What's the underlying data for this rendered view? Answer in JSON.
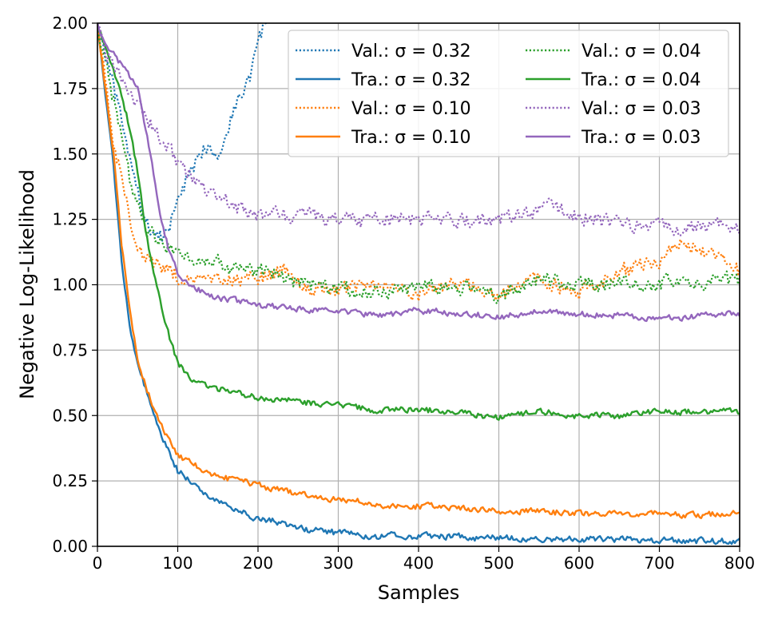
{
  "chart_data": {
    "type": "line",
    "title": "",
    "xlabel": "Samples",
    "ylabel": "Negative Log-Likelihood",
    "xlim": [
      0,
      800
    ],
    "ylim": [
      0.0,
      2.0
    ],
    "grid": true,
    "legend_position": "top-right",
    "legend_columns": 2,
    "x_ticks": [
      0,
      100,
      200,
      300,
      400,
      500,
      600,
      700,
      800
    ],
    "x_tick_labels": [
      "0",
      "100",
      "200",
      "300",
      "400",
      "500",
      "600",
      "700",
      "800"
    ],
    "y_ticks": [
      0.0,
      0.25,
      0.5,
      0.75,
      1.0,
      1.25,
      1.5,
      1.75,
      2.0
    ],
    "y_tick_labels": [
      "0.00",
      "0.25",
      "0.50",
      "0.75",
      "1.00",
      "1.25",
      "1.50",
      "1.75",
      "2.00"
    ],
    "series": [
      {
        "name": "Val.: σ = 0.32",
        "color": "#1f77b4",
        "style": "dotted",
        "x": [
          0,
          10,
          20,
          30,
          40,
          50,
          60,
          70,
          80,
          90,
          100,
          110,
          120,
          130,
          140,
          150,
          160,
          170,
          180,
          190,
          200,
          210
        ],
        "y": [
          2.0,
          1.88,
          1.75,
          1.62,
          1.48,
          1.35,
          1.24,
          1.2,
          1.18,
          1.22,
          1.33,
          1.4,
          1.43,
          1.5,
          1.55,
          1.5,
          1.58,
          1.68,
          1.73,
          1.8,
          1.92,
          2.0
        ]
      },
      {
        "name": "Tra.: σ = 0.32",
        "color": "#1f77b4",
        "style": "solid",
        "x": [
          0,
          10,
          20,
          30,
          40,
          50,
          60,
          70,
          80,
          90,
          100,
          120,
          140,
          160,
          180,
          200,
          250,
          300,
          350,
          400,
          450,
          500,
          550,
          600,
          650,
          700,
          750,
          800
        ],
        "y": [
          2.0,
          1.72,
          1.45,
          1.1,
          0.85,
          0.7,
          0.6,
          0.5,
          0.42,
          0.35,
          0.29,
          0.24,
          0.19,
          0.16,
          0.13,
          0.11,
          0.07,
          0.05,
          0.04,
          0.04,
          0.035,
          0.03,
          0.03,
          0.025,
          0.025,
          0.025,
          0.02,
          0.02
        ]
      },
      {
        "name": "Val.: σ = 0.10",
        "color": "#ff7f0e",
        "style": "dotted",
        "x": [
          0,
          10,
          20,
          30,
          40,
          50,
          60,
          80,
          100,
          120,
          150,
          200,
          240,
          260,
          300,
          350,
          400,
          450,
          500,
          550,
          600,
          650,
          700,
          720,
          750,
          780,
          800
        ],
        "y": [
          2.0,
          1.78,
          1.55,
          1.4,
          1.25,
          1.15,
          1.1,
          1.07,
          1.03,
          1.01,
          1.0,
          1.03,
          1.06,
          1.0,
          0.97,
          1.0,
          0.96,
          1.0,
          0.97,
          1.02,
          0.98,
          1.05,
          1.1,
          1.18,
          1.15,
          1.08,
          1.05
        ]
      },
      {
        "name": "Tra.: σ = 0.10",
        "color": "#ff7f0e",
        "style": "solid",
        "x": [
          0,
          10,
          20,
          30,
          40,
          50,
          60,
          70,
          80,
          90,
          100,
          120,
          150,
          200,
          250,
          300,
          350,
          400,
          450,
          500,
          550,
          600,
          650,
          700,
          750,
          800
        ],
        "y": [
          2.0,
          1.75,
          1.5,
          1.15,
          0.9,
          0.72,
          0.62,
          0.53,
          0.46,
          0.4,
          0.35,
          0.31,
          0.27,
          0.23,
          0.2,
          0.18,
          0.16,
          0.155,
          0.145,
          0.135,
          0.135,
          0.125,
          0.125,
          0.125,
          0.12,
          0.135
        ]
      },
      {
        "name": "Val.: σ = 0.04",
        "color": "#2ca02c",
        "style": "dotted",
        "x": [
          0,
          10,
          20,
          30,
          40,
          50,
          60,
          80,
          100,
          150,
          200,
          250,
          300,
          350,
          400,
          450,
          500,
          550,
          600,
          650,
          700,
          750,
          800
        ],
        "y": [
          2.0,
          1.85,
          1.7,
          1.55,
          1.4,
          1.3,
          1.22,
          1.16,
          1.13,
          1.08,
          1.05,
          1.0,
          0.98,
          0.98,
          0.98,
          0.99,
          0.96,
          1.02,
          0.99,
          1.0,
          1.0,
          1.01,
          1.01
        ]
      },
      {
        "name": "Tra.: σ = 0.04",
        "color": "#2ca02c",
        "style": "solid",
        "x": [
          0,
          10,
          20,
          30,
          40,
          50,
          60,
          70,
          80,
          90,
          100,
          120,
          150,
          200,
          250,
          300,
          350,
          400,
          450,
          500,
          550,
          600,
          650,
          700,
          750,
          800
        ],
        "y": [
          2.0,
          1.9,
          1.82,
          1.72,
          1.6,
          1.43,
          1.2,
          1.05,
          0.92,
          0.8,
          0.7,
          0.63,
          0.6,
          0.57,
          0.55,
          0.54,
          0.52,
          0.52,
          0.515,
          0.49,
          0.52,
          0.5,
          0.5,
          0.52,
          0.51,
          0.51
        ]
      },
      {
        "name": "Val.: σ = 0.03",
        "color": "#9467bd",
        "style": "dotted",
        "x": [
          0,
          10,
          20,
          30,
          40,
          50,
          60,
          80,
          100,
          120,
          150,
          200,
          250,
          300,
          350,
          400,
          450,
          500,
          550,
          570,
          600,
          650,
          700,
          750,
          800
        ],
        "y": [
          2.0,
          1.88,
          1.84,
          1.8,
          1.75,
          1.7,
          1.65,
          1.55,
          1.47,
          1.4,
          1.32,
          1.27,
          1.26,
          1.24,
          1.25,
          1.26,
          1.25,
          1.25,
          1.27,
          1.29,
          1.27,
          1.22,
          1.22,
          1.22,
          1.22
        ]
      },
      {
        "name": "Tra.: σ = 0.03",
        "color": "#9467bd",
        "style": "solid",
        "x": [
          0,
          10,
          20,
          30,
          40,
          50,
          60,
          70,
          80,
          90,
          100,
          120,
          150,
          200,
          250,
          300,
          350,
          400,
          450,
          500,
          550,
          600,
          650,
          700,
          750,
          800
        ],
        "y": [
          2.0,
          1.92,
          1.88,
          1.84,
          1.8,
          1.75,
          1.6,
          1.42,
          1.25,
          1.12,
          1.04,
          0.99,
          0.95,
          0.92,
          0.91,
          0.9,
          0.88,
          0.9,
          0.89,
          0.88,
          0.9,
          0.89,
          0.88,
          0.87,
          0.88,
          0.89
        ]
      }
    ]
  }
}
